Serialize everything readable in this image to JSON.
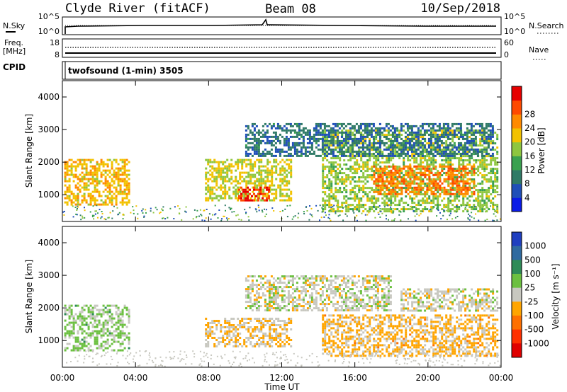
{
  "header": {
    "site": "Clyde River (fitACF)",
    "beam": "Beam 08",
    "date": "10/Sep/2018"
  },
  "noise_panel": {
    "left_label": "N.Sky",
    "left_ticks": [
      "10^5",
      "10^0"
    ],
    "right_label": "N.Search",
    "right_ticks": [
      "10^5",
      "10^0"
    ]
  },
  "freq_panel": {
    "left_label_line1": "Freq.",
    "left_label_line2": "[MHz]",
    "left_ticks": [
      "18",
      "8"
    ],
    "right_label": "Nave",
    "right_ticks": [
      "60",
      "0"
    ]
  },
  "cpid_panel": {
    "label": "CPID",
    "text": "twofsound (1-min) 3505"
  },
  "colors": {
    "power_scale": [
      "#0a1be6",
      "#1f4fb8",
      "#2f7a66",
      "#3aa14f",
      "#8ec63f",
      "#f2c200",
      "#ff8a00",
      "#ff4a00",
      "#e60000"
    ],
    "velocity_scale": [
      "#1f3fc0",
      "#2f6aa0",
      "#2e8b57",
      "#6cc040",
      "#c8c8c0",
      "#ffa500",
      "#ff7000",
      "#ff3000",
      "#e00000"
    ]
  },
  "chart_data": [
    {
      "type": "heatmap",
      "panel": "power",
      "ylabel": "Slant Range [km]",
      "xlabel": "",
      "x_ticks": [
        "00:00",
        "04:00",
        "08:00",
        "12:00",
        "16:00",
        "20:00",
        "00:00"
      ],
      "xlim_hours": [
        0,
        24
      ],
      "y_ticks": [
        1000,
        2000,
        3000,
        4000
      ],
      "ylim": [
        180,
        4500
      ],
      "colorbar": {
        "label": "Power [dB]",
        "ticks": [
          "4",
          "8",
          "12",
          "16",
          "20",
          "24",
          "28"
        ],
        "range": [
          0,
          32
        ]
      },
      "regions": [
        {
          "t0": 0.1,
          "t1": 3.6,
          "r0": 700,
          "r1": 2100,
          "level": 20
        },
        {
          "t0": 7.8,
          "t1": 12.5,
          "r0": 800,
          "r1": 2100,
          "level": 18
        },
        {
          "t0": 9.5,
          "t1": 11.3,
          "r0": 850,
          "r1": 1250,
          "level": 28
        },
        {
          "t0": 14.2,
          "t1": 23.8,
          "r0": 500,
          "r1": 3000,
          "level": 16
        },
        {
          "t0": 17.0,
          "t1": 22.5,
          "r0": 1000,
          "r1": 1900,
          "level": 24
        },
        {
          "t0": 10.0,
          "t1": 23.5,
          "r0": 2200,
          "r1": 3200,
          "level": 8
        }
      ]
    },
    {
      "type": "heatmap",
      "panel": "velocity",
      "ylabel": "Slant Range [km]",
      "xlabel": "Time UT",
      "x_ticks": [
        "00:00",
        "04:00",
        "08:00",
        "12:00",
        "16:00",
        "20:00",
        "00:00"
      ],
      "xlim_hours": [
        0,
        24
      ],
      "y_ticks": [
        1000,
        2000,
        3000,
        4000
      ],
      "ylim": [
        180,
        4500
      ],
      "colorbar": {
        "label": "Velocity [m s⁻¹]",
        "ticks": [
          "1000",
          "500",
          "100",
          "25",
          "-25",
          "-100",
          "-500",
          "-1000"
        ],
        "range": [
          -1200,
          1200
        ]
      },
      "regions": [
        {
          "t0": 0.1,
          "t1": 3.6,
          "r0": 700,
          "r1": 2100,
          "level": 200
        },
        {
          "t0": 7.8,
          "t1": 12.5,
          "r0": 800,
          "r1": 1700,
          "level": -150
        },
        {
          "t0": 10.0,
          "t1": 18.0,
          "r0": 1900,
          "r1": 3000,
          "level": 0
        },
        {
          "t0": 14.2,
          "t1": 23.8,
          "r0": 500,
          "r1": 1800,
          "level": -200
        },
        {
          "t0": 18.5,
          "t1": 23.8,
          "r0": 1900,
          "r1": 2600,
          "level": 0
        }
      ]
    }
  ]
}
